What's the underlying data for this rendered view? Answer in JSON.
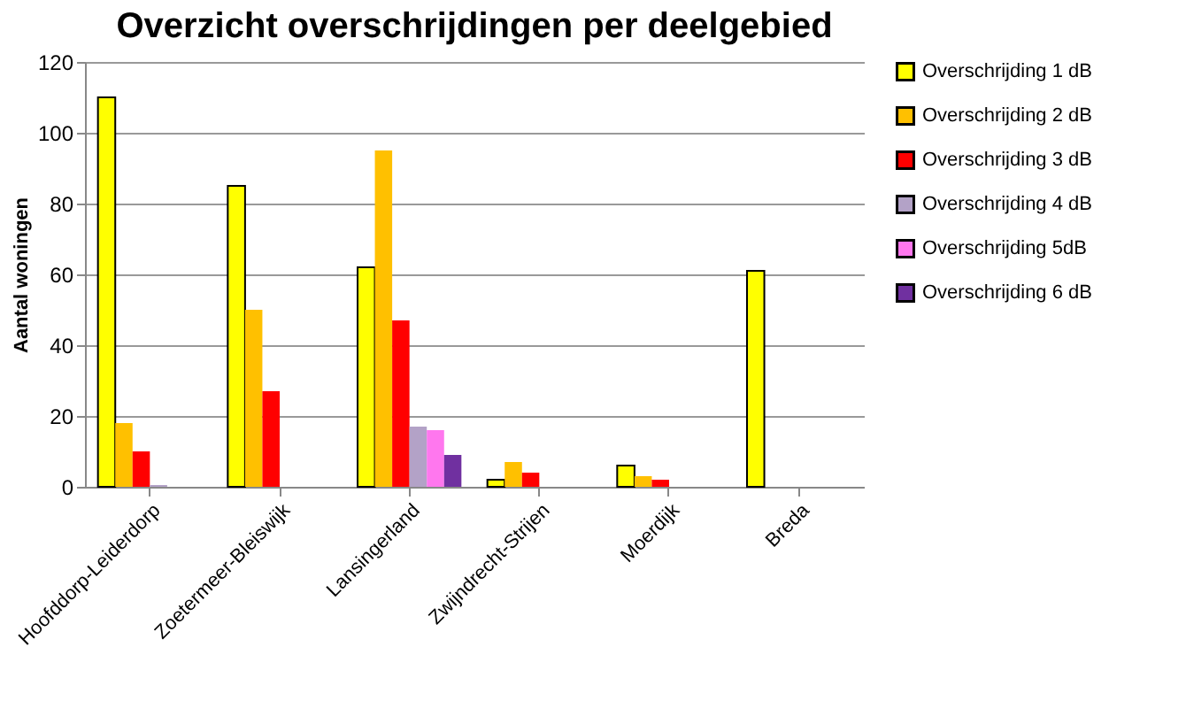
{
  "chart_data": {
    "type": "bar",
    "title": "Overzicht overschrijdingen per deelgebied",
    "ylabel": "Aantal woningen",
    "categories": [
      "Hoofddorp-Leiderdorp",
      "Zoetermeer-Bleiswijk",
      "Lansingerland",
      "Zwijndrecht-Strijen",
      "Moerdijk",
      "Breda"
    ],
    "series": [
      {
        "name": "Overschrijding 1 dB",
        "color": "#ffff00",
        "values": [
          110,
          85,
          62,
          2,
          6,
          61
        ]
      },
      {
        "name": "Overschrijding 2 dB",
        "color": "#ffc000",
        "values": [
          18,
          50,
          95,
          7,
          3,
          null
        ]
      },
      {
        "name": "Overschrijding 3 dB",
        "color": "#ff0000",
        "values": [
          10,
          27,
          47,
          4,
          2,
          null
        ]
      },
      {
        "name": "Overschrijding 4 dB",
        "color": "#b3a2c7",
        "values": [
          0.5,
          null,
          17,
          null,
          null,
          null
        ]
      },
      {
        "name": "Overschrijding 5dB",
        "color": "#ff77ee",
        "values": [
          null,
          null,
          16,
          null,
          null,
          null
        ]
      },
      {
        "name": "Overschrijding 6 dB",
        "color": "#7030a0",
        "values": [
          null,
          null,
          9,
          null,
          null,
          null
        ]
      }
    ],
    "ylim": [
      0,
      120
    ],
    "yticks": [
      0,
      20,
      40,
      60,
      80,
      100,
      120
    ],
    "grid": "y",
    "legend": "right"
  }
}
